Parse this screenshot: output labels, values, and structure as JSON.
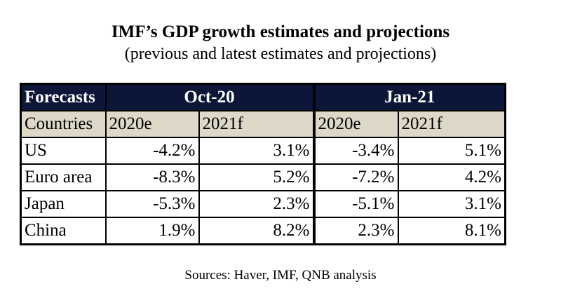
{
  "title": "IMF’s GDP growth estimates and projections",
  "subtitle": "(previous and latest estimates and projections)",
  "table": {
    "corner": "Forecasts",
    "groups": [
      "Oct-20",
      "Jan-21"
    ],
    "row_header": "Countries",
    "subcols": [
      "2020e",
      "2021f",
      "2020e",
      "2021f"
    ],
    "rows": [
      {
        "country": "US",
        "values": [
          "-4.2%",
          "3.1%",
          "-3.4%",
          "5.1%"
        ]
      },
      {
        "country": "Euro area",
        "values": [
          "-8.3%",
          "5.2%",
          "-7.2%",
          "4.2%"
        ]
      },
      {
        "country": "Japan",
        "values": [
          "-5.3%",
          "2.3%",
          "-5.1%",
          "3.1%"
        ]
      },
      {
        "country": "China",
        "values": [
          "1.9%",
          "8.2%",
          "2.3%",
          "8.1%"
        ]
      }
    ]
  },
  "source": "Sources: Haver, IMF, QNB analysis",
  "colors": {
    "header_bg": "#0b1638",
    "subheader_bg": "#ddd8c7"
  }
}
